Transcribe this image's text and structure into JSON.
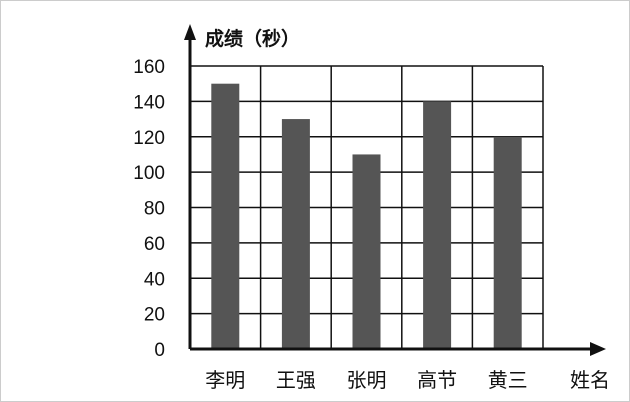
{
  "chart_data": {
    "type": "bar",
    "ylabel": "成绩（秒）",
    "xlabel": "姓名",
    "categories": [
      "李明",
      "王强",
      "张明",
      "高节",
      "黄三"
    ],
    "values": [
      150,
      130,
      110,
      140,
      120
    ],
    "ylim": [
      0,
      160
    ],
    "yticks": [
      0,
      20,
      40,
      60,
      80,
      100,
      120,
      140,
      160
    ],
    "grid": true,
    "bar_color": "#555555"
  }
}
